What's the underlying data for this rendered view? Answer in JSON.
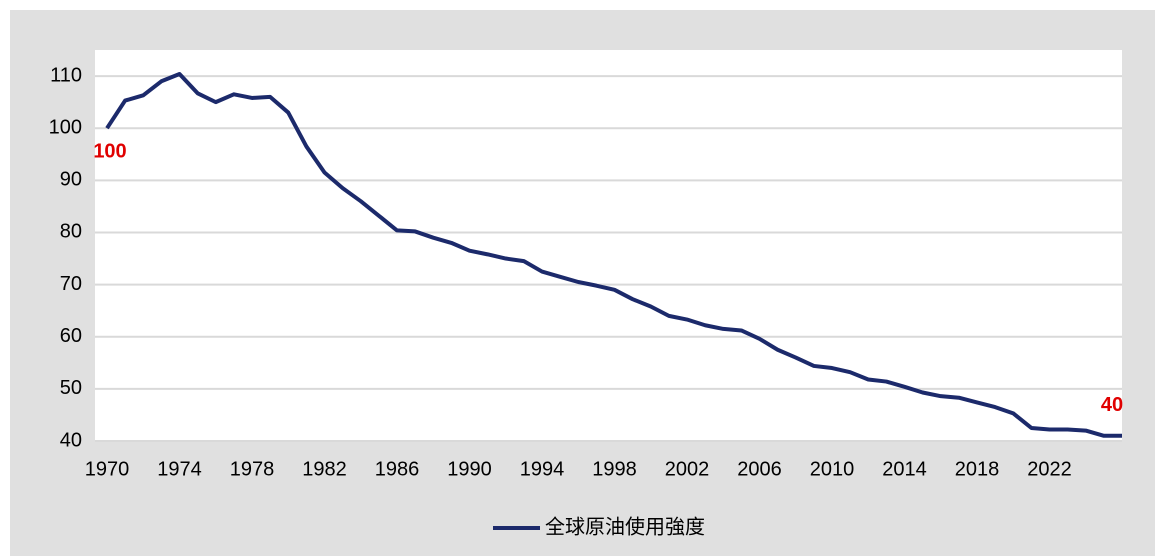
{
  "chart_data": {
    "type": "line",
    "x": [
      1970,
      1971,
      1972,
      1973,
      1974,
      1975,
      1976,
      1977,
      1978,
      1979,
      1980,
      1981,
      1982,
      1983,
      1984,
      1985,
      1986,
      1987,
      1988,
      1989,
      1990,
      1991,
      1992,
      1993,
      1994,
      1995,
      1996,
      1997,
      1998,
      1999,
      2000,
      2001,
      2002,
      2003,
      2004,
      2005,
      2006,
      2007,
      2008,
      2009,
      2010,
      2011,
      2012,
      2013,
      2014,
      2015,
      2016,
      2017,
      2018,
      2019,
      2020,
      2021,
      2022,
      2023,
      2024,
      2025,
      2026
    ],
    "series": [
      {
        "name": "全球原油使用強度",
        "color": "#1c2a6b",
        "values": [
          100,
          105.3,
          106.3,
          109,
          110.4,
          106.7,
          105,
          106.5,
          105.8,
          106,
          103,
          96.5,
          91.5,
          88.5,
          86,
          83.2,
          80.4,
          80.2,
          79,
          78,
          76.5,
          75.8,
          75,
          74.5,
          72.5,
          71.5,
          70.5,
          69.8,
          69,
          67.2,
          65.8,
          64,
          63.3,
          62.2,
          61.5,
          61.2,
          59.6,
          57.5,
          56,
          54.4,
          54,
          53.2,
          51.8,
          51.4,
          50.4,
          49.3,
          48.6,
          48.3,
          47.4,
          46.5,
          45.3,
          42.5,
          42.2,
          42.2,
          42,
          41,
          41
        ]
      }
    ],
    "xlim": [
      1970,
      2026
    ],
    "xticks": [
      1970,
      1974,
      1978,
      1982,
      1986,
      1990,
      1994,
      1998,
      2002,
      2006,
      2010,
      2014,
      2018,
      2022
    ],
    "ylim": [
      40,
      115
    ],
    "yticks": [
      40,
      50,
      60,
      70,
      80,
      90,
      100,
      110
    ],
    "grid": true,
    "annotations": [
      "100",
      "40"
    ],
    "legend": "bottom"
  }
}
